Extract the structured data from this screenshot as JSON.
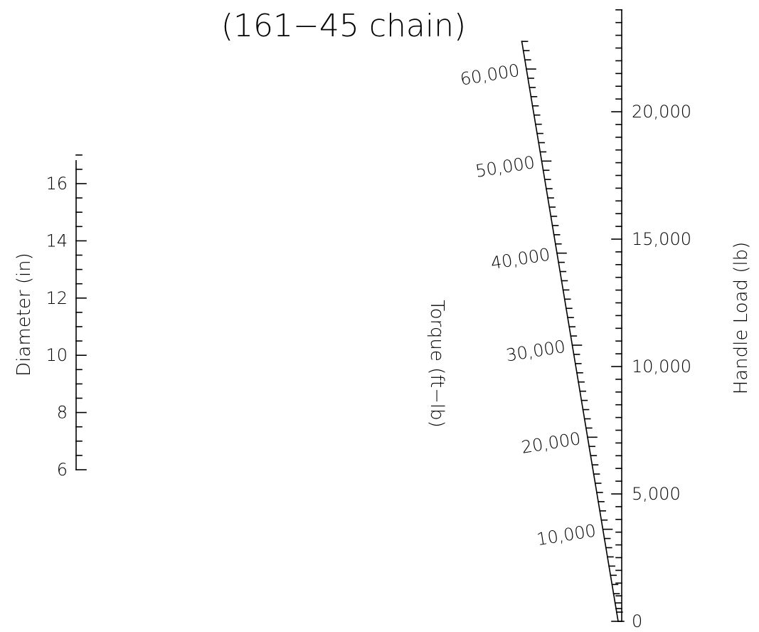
{
  "chart_data": {
    "type": "nomogram",
    "title": "(161−45 chain)",
    "colors": {
      "ink": "#000000",
      "background": "#ffffff"
    },
    "scales": [
      {
        "id": "diameter",
        "label": "Diameter (in)",
        "unit": "in",
        "min": 6,
        "max": 16.8,
        "tick_labels": [
          "6",
          "8",
          "10",
          "12",
          "14",
          "16"
        ],
        "tick_values": [
          6,
          8,
          10,
          12,
          14,
          16
        ],
        "minor_tick_step": 0.5
      },
      {
        "id": "torque",
        "label": "Torque (ft−lb)",
        "unit": "ft-lb",
        "min": 0,
        "max": 63000,
        "slanted": true,
        "tick_labels": [
          "10,000",
          "20,000",
          "30,000",
          "40,000",
          "50,000",
          "60,000"
        ],
        "tick_values": [
          10000,
          20000,
          30000,
          40000,
          50000,
          60000
        ],
        "minor_tick_step": 1000
      },
      {
        "id": "handle_load",
        "label": "Handle Load (lb)",
        "unit": "lb",
        "min": 0,
        "max": 24000,
        "tick_labels": [
          "0",
          "5,000",
          "10,000",
          "15,000",
          "20,000"
        ],
        "tick_values": [
          0,
          5000,
          10000,
          15000,
          20000
        ],
        "minor_tick_step": 500
      }
    ]
  }
}
